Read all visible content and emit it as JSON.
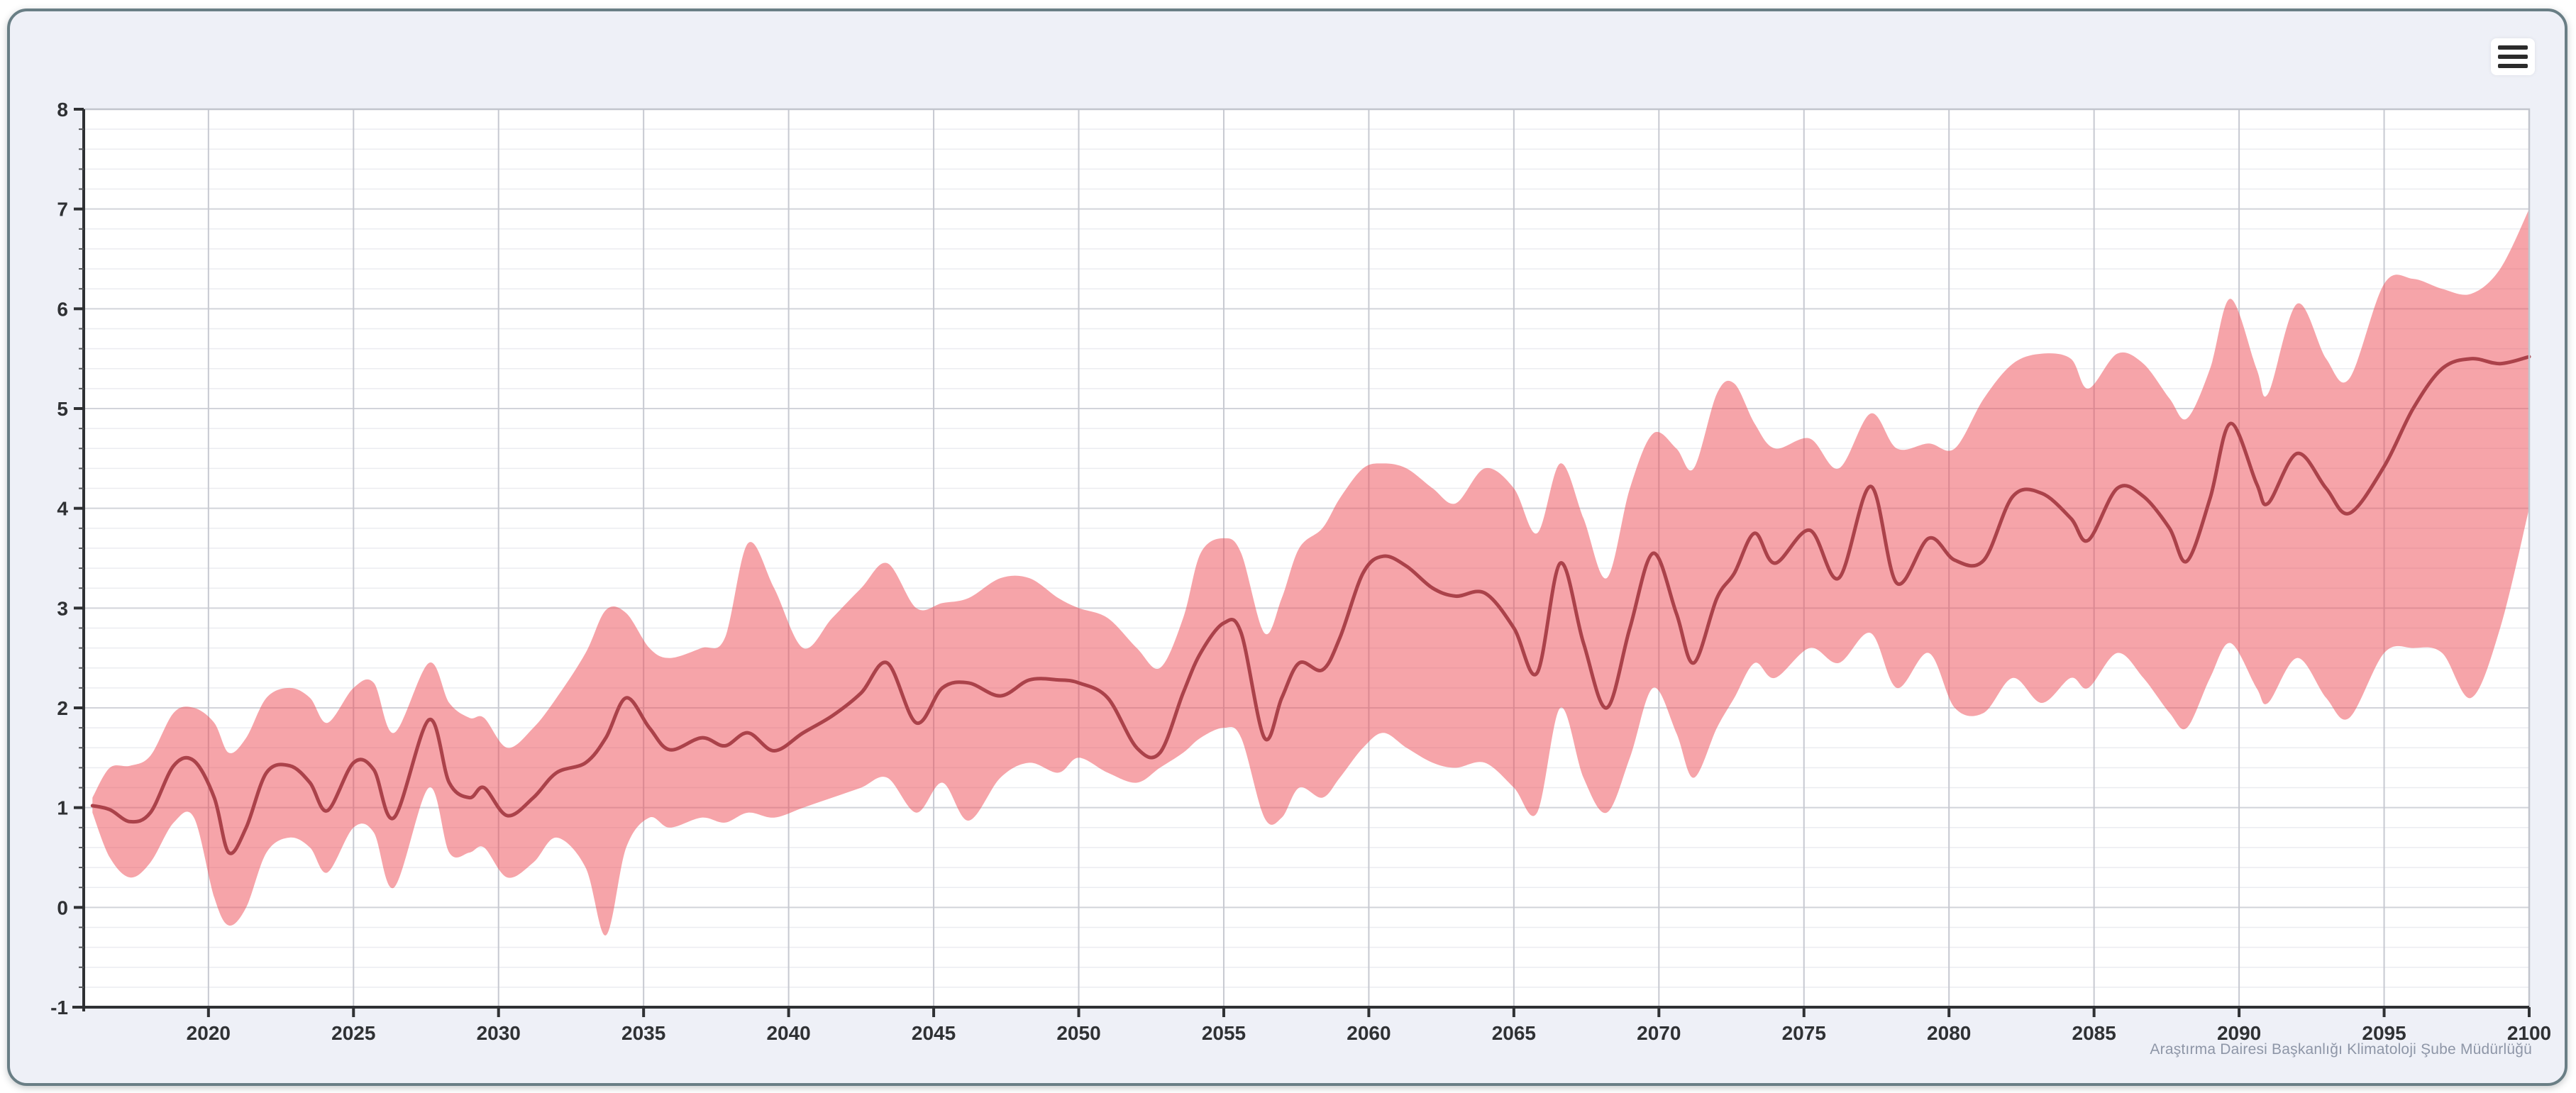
{
  "credits": {
    "text": "Araştırma Dairesi Başkanlığı Klimatoloji Şube Müdürlüğü"
  },
  "context_button": {
    "icon": "hamburger-icon"
  },
  "colors": {
    "panel_border": "#697e85",
    "panel_background": "#eef0f7",
    "plot_background": "#ffffff",
    "band_fill": "#ee4a54",
    "band_opacity": 0.5,
    "mean_line": "#ab424a",
    "axis_line": "#2f3134",
    "grid_major": "#d2d4da",
    "grid_minor": "#ebecf0",
    "grid_vertical": "#c7c9d1",
    "tick_label": "#2f3134",
    "credits_text": "#8e96a7"
  },
  "chart_data": {
    "type": "arearange+line",
    "title": "",
    "xlabel": "",
    "ylabel": "",
    "grid": "on",
    "legend": "none",
    "xlim": [
      2015.7,
      2100
    ],
    "ylim": [
      -1,
      8
    ],
    "x_major_ticks": [
      2020,
      2025,
      2030,
      2035,
      2040,
      2045,
      2050,
      2055,
      2060,
      2065,
      2070,
      2075,
      2080,
      2085,
      2090,
      2095,
      2100
    ],
    "y_major_ticks": [
      -1,
      0,
      1,
      2,
      3,
      4,
      5,
      6,
      7,
      8
    ],
    "y_minor_step": 0.2,
    "x": [
      2016.0,
      2016.6,
      2017.3,
      2018.0,
      2018.8,
      2019.5,
      2020.2,
      2020.7,
      2021.3,
      2022.0,
      2022.8,
      2023.5,
      2024.1,
      2025.0,
      2025.7,
      2026.4,
      2027.6,
      2028.3,
      2029.0,
      2029.5,
      2030.3,
      2031.2,
      2032.0,
      2033.0,
      2033.7,
      2034.4,
      2035.2,
      2035.9,
      2037.0,
      2037.8,
      2038.6,
      2039.5,
      2040.5,
      2041.5,
      2042.5,
      2043.4,
      2044.4,
      2045.3,
      2046.2,
      2047.3,
      2048.3,
      2049.3,
      2050.0,
      2051.0,
      2052.0,
      2052.8,
      2053.6,
      2054.2,
      2055.0,
      2055.6,
      2056.4,
      2057.0,
      2057.6,
      2058.4,
      2059.0,
      2059.8,
      2060.5,
      2061.3,
      2062.2,
      2063.0,
      2064.0,
      2065.0,
      2065.8,
      2066.6,
      2067.4,
      2068.2,
      2069.0,
      2069.8,
      2070.6,
      2071.2,
      2072.0,
      2072.6,
      2073.3,
      2074.0,
      2075.2,
      2076.2,
      2077.3,
      2078.2,
      2079.3,
      2080.2,
      2081.2,
      2082.2,
      2083.2,
      2084.2,
      2084.8,
      2085.8,
      2086.7,
      2087.6,
      2088.2,
      2089.0,
      2089.7,
      2090.6,
      2091.0,
      2092.0,
      2093.0,
      2093.8,
      2095.0,
      2096.0,
      2097.0,
      2098.0,
      2099.0,
      2100.0
    ],
    "series": [
      {
        "name": "uncertainty-range",
        "type": "arearange",
        "color": "#ee4a54",
        "fill_opacity": 0.5,
        "lower": [
          0.95,
          0.5,
          0.3,
          0.45,
          0.85,
          0.9,
          0.1,
          -0.18,
          0.0,
          0.55,
          0.7,
          0.6,
          0.35,
          0.8,
          0.75,
          0.2,
          1.2,
          0.55,
          0.55,
          0.6,
          0.3,
          0.45,
          0.7,
          0.4,
          -0.28,
          0.6,
          0.9,
          0.8,
          0.9,
          0.85,
          0.95,
          0.9,
          1.0,
          1.1,
          1.2,
          1.3,
          0.95,
          1.25,
          0.87,
          1.3,
          1.45,
          1.35,
          1.5,
          1.35,
          1.25,
          1.4,
          1.55,
          1.7,
          1.8,
          1.7,
          0.9,
          0.9,
          1.2,
          1.1,
          1.3,
          1.6,
          1.75,
          1.6,
          1.45,
          1.4,
          1.45,
          1.2,
          0.95,
          2.0,
          1.3,
          0.95,
          1.5,
          2.2,
          1.75,
          1.3,
          1.8,
          2.1,
          2.45,
          2.3,
          2.6,
          2.45,
          2.75,
          2.2,
          2.55,
          2.0,
          1.95,
          2.3,
          2.05,
          2.3,
          2.2,
          2.55,
          2.3,
          1.95,
          1.8,
          2.3,
          2.65,
          2.2,
          2.05,
          2.5,
          2.1,
          1.9,
          2.55,
          2.6,
          2.55,
          2.1,
          2.8,
          4.0
        ],
        "upper": [
          1.1,
          1.4,
          1.42,
          1.52,
          1.95,
          2.0,
          1.85,
          1.55,
          1.7,
          2.1,
          2.2,
          2.1,
          1.85,
          2.2,
          2.25,
          1.75,
          2.45,
          2.05,
          1.9,
          1.9,
          1.6,
          1.8,
          2.1,
          2.55,
          2.98,
          2.95,
          2.6,
          2.5,
          2.6,
          2.7,
          3.65,
          3.2,
          2.6,
          2.9,
          3.2,
          3.45,
          3.0,
          3.05,
          3.1,
          3.3,
          3.3,
          3.1,
          3.0,
          2.9,
          2.6,
          2.4,
          2.9,
          3.55,
          3.7,
          3.55,
          2.75,
          3.1,
          3.6,
          3.8,
          4.1,
          4.4,
          4.45,
          4.4,
          4.2,
          4.05,
          4.4,
          4.2,
          3.75,
          4.45,
          3.9,
          3.3,
          4.2,
          4.75,
          4.6,
          4.4,
          5.15,
          5.25,
          4.85,
          4.6,
          4.7,
          4.4,
          4.95,
          4.6,
          4.65,
          4.6,
          5.1,
          5.45,
          5.55,
          5.5,
          5.2,
          5.55,
          5.45,
          5.1,
          4.9,
          5.4,
          6.1,
          5.4,
          5.15,
          6.05,
          5.5,
          5.3,
          6.25,
          6.3,
          6.2,
          6.15,
          6.4,
          7.0
        ]
      },
      {
        "name": "ensemble-mean",
        "type": "line",
        "color": "#ab424a",
        "width": 5,
        "values": [
          1.02,
          0.98,
          0.86,
          0.95,
          1.42,
          1.47,
          1.1,
          0.55,
          0.8,
          1.35,
          1.42,
          1.25,
          0.97,
          1.45,
          1.38,
          0.9,
          1.88,
          1.25,
          1.1,
          1.2,
          0.92,
          1.1,
          1.35,
          1.45,
          1.7,
          2.1,
          1.8,
          1.58,
          1.7,
          1.62,
          1.75,
          1.57,
          1.75,
          1.92,
          2.15,
          2.45,
          1.85,
          2.2,
          2.25,
          2.12,
          2.28,
          2.28,
          2.25,
          2.1,
          1.6,
          1.55,
          2.15,
          2.55,
          2.85,
          2.75,
          1.7,
          2.1,
          2.45,
          2.38,
          2.7,
          3.35,
          3.52,
          3.42,
          3.2,
          3.12,
          3.15,
          2.8,
          2.35,
          3.45,
          2.65,
          2.0,
          2.8,
          3.55,
          2.95,
          2.45,
          3.1,
          3.35,
          3.75,
          3.45,
          3.78,
          3.3,
          4.22,
          3.25,
          3.7,
          3.48,
          3.48,
          4.12,
          4.15,
          3.9,
          3.68,
          4.2,
          4.12,
          3.8,
          3.47,
          4.1,
          4.85,
          4.25,
          4.05,
          4.55,
          4.2,
          3.95,
          4.42,
          5.0,
          5.4,
          5.5,
          5.45,
          5.52
        ]
      }
    ]
  }
}
